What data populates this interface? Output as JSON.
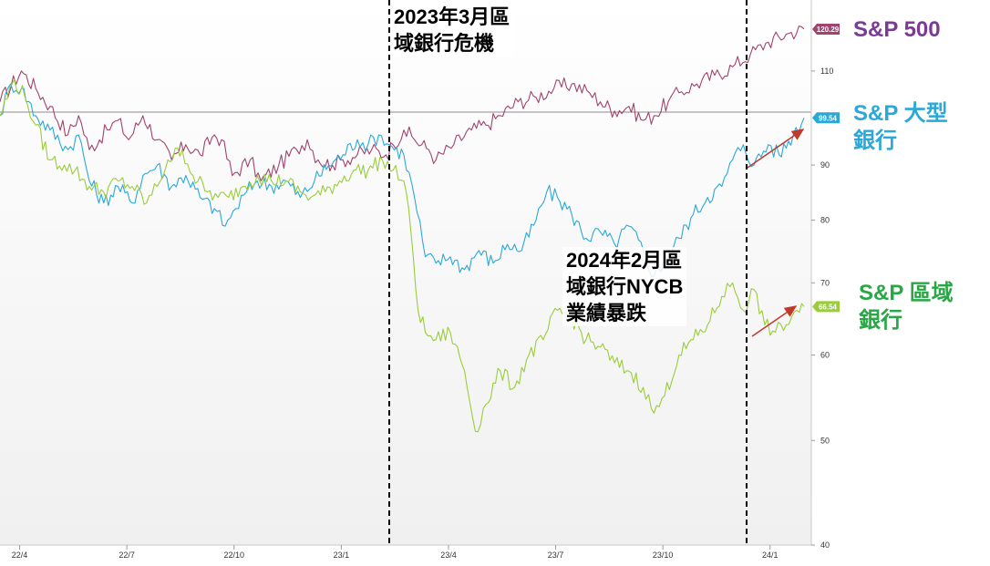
{
  "chart_data": {
    "type": "line",
    "y_scale": "log",
    "ylim": [
      40,
      128
    ],
    "y_ticks": [
      "40",
      "50",
      "60",
      "70",
      "80",
      "90",
      "110"
    ],
    "x_ticks": [
      "22/4",
      "22/7",
      "22/10",
      "23/1",
      "23/4",
      "23/7",
      "23/10",
      "24/1"
    ],
    "grid": false,
    "reference_line": 100,
    "series": [
      {
        "name": "S&P 500",
        "color": "#a0436e",
        "last_value": "120.29",
        "values": [
          [
            0,
            103
          ],
          [
            0.6,
            110
          ],
          [
            1,
            106
          ],
          [
            1.4,
            102
          ],
          [
            1.9,
            96
          ],
          [
            2.2,
            100
          ],
          [
            2.5,
            93
          ],
          [
            3.0,
            97
          ],
          [
            3.3,
            99
          ],
          [
            3.6,
            95
          ],
          [
            4.0,
            100
          ],
          [
            4.4,
            95
          ],
          [
            4.8,
            91
          ],
          [
            5.2,
            94
          ],
          [
            5.6,
            92
          ],
          [
            6.0,
            96
          ],
          [
            6.2,
            95
          ],
          [
            6.5,
            88
          ],
          [
            7.0,
            91
          ],
          [
            7.3,
            87
          ],
          [
            7.8,
            90
          ],
          [
            8.3,
            93
          ],
          [
            8.6,
            95
          ],
          [
            8.9,
            91
          ],
          [
            9.3,
            90
          ],
          [
            9.6,
            91
          ],
          [
            10.0,
            92
          ],
          [
            10.4,
            93
          ],
          [
            10.8,
            92
          ],
          [
            11.0,
            94
          ],
          [
            11.3,
            97
          ],
          [
            11.6,
            95
          ],
          [
            12.0,
            93
          ],
          [
            12.2,
            91
          ],
          [
            12.7,
            94
          ],
          [
            13.2,
            97
          ],
          [
            13.6,
            98
          ],
          [
            14.0,
            100
          ],
          [
            14.5,
            103
          ],
          [
            15.0,
            104
          ],
          [
            15.5,
            106
          ],
          [
            16.0,
            107
          ],
          [
            16.5,
            105
          ],
          [
            16.8,
            103
          ],
          [
            17.2,
            101
          ],
          [
            17.6,
            102
          ],
          [
            18.0,
            99
          ],
          [
            18.3,
            100
          ],
          [
            18.7,
            103
          ],
          [
            19.0,
            105
          ],
          [
            19.5,
            107
          ],
          [
            20.0,
            109
          ],
          [
            20.5,
            111
          ],
          [
            21.0,
            114
          ],
          [
            21.5,
            117
          ],
          [
            22.0,
            119
          ],
          [
            22.5,
            120.29
          ]
        ]
      },
      {
        "name": "S&P 大型\n銀行",
        "color": "#2aa8d8",
        "last_value": "99.54",
        "values": [
          [
            0,
            100
          ],
          [
            0.3,
            107
          ],
          [
            0.6,
            106
          ],
          [
            1,
            100
          ],
          [
            1.4,
            97
          ],
          [
            1.9,
            93
          ],
          [
            2.2,
            96
          ],
          [
            2.5,
            87
          ],
          [
            2.9,
            83
          ],
          [
            3.3,
            86
          ],
          [
            3.7,
            83
          ],
          [
            4.0,
            88
          ],
          [
            4.4,
            90
          ],
          [
            4.8,
            86
          ],
          [
            5.2,
            88
          ],
          [
            5.6,
            84
          ],
          [
            6.0,
            82
          ],
          [
            6.3,
            79
          ],
          [
            6.6,
            82
          ],
          [
            6.9,
            85
          ],
          [
            7.2,
            87
          ],
          [
            7.6,
            86
          ],
          [
            8.0,
            87
          ],
          [
            8.4,
            84
          ],
          [
            8.8,
            87
          ],
          [
            9.2,
            90
          ],
          [
            9.6,
            92
          ],
          [
            10.0,
            95
          ],
          [
            10.3,
            94
          ],
          [
            10.6,
            96
          ],
          [
            10.9,
            94
          ],
          [
            11.3,
            92
          ],
          [
            11.6,
            84
          ],
          [
            11.9,
            74
          ],
          [
            12.2,
            73
          ],
          [
            12.6,
            74
          ],
          [
            13.0,
            72
          ],
          [
            13.4,
            75
          ],
          [
            13.8,
            73
          ],
          [
            14.2,
            76
          ],
          [
            14.6,
            75
          ],
          [
            15.0,
            80
          ],
          [
            15.3,
            85
          ],
          [
            15.6,
            84
          ],
          [
            16.0,
            81
          ],
          [
            16.4,
            77
          ],
          [
            16.8,
            78
          ],
          [
            17.2,
            76
          ],
          [
            17.6,
            79
          ],
          [
            18.0,
            75
          ],
          [
            18.3,
            71
          ],
          [
            18.7,
            74
          ],
          [
            19.0,
            77
          ],
          [
            19.4,
            81
          ],
          [
            19.8,
            84
          ],
          [
            20.2,
            86
          ],
          [
            20.5,
            91
          ],
          [
            20.8,
            94
          ],
          [
            21.1,
            90
          ],
          [
            21.5,
            94
          ],
          [
            21.8,
            92
          ],
          [
            22.2,
            96
          ],
          [
            22.5,
            99.54
          ]
        ]
      },
      {
        "name": "S&P 區域\n銀行",
        "color": "#9acd3a",
        "last_value": "66.54",
        "values": [
          [
            0,
            100
          ],
          [
            0.4,
            108
          ],
          [
            0.7,
            104
          ],
          [
            1,
            98
          ],
          [
            1.4,
            91
          ],
          [
            1.8,
            90
          ],
          [
            2.1,
            89
          ],
          [
            2.5,
            86
          ],
          [
            2.9,
            85
          ],
          [
            3.3,
            87
          ],
          [
            3.7,
            86
          ],
          [
            4.1,
            83
          ],
          [
            4.4,
            86
          ],
          [
            4.7,
            91
          ],
          [
            5.1,
            93
          ],
          [
            5.4,
            88
          ],
          [
            5.8,
            85
          ],
          [
            6.1,
            84
          ],
          [
            6.4,
            84
          ],
          [
            6.8,
            86
          ],
          [
            7.2,
            88
          ],
          [
            7.6,
            87
          ],
          [
            8.0,
            87
          ],
          [
            8.4,
            85
          ],
          [
            8.7,
            84
          ],
          [
            9.1,
            85
          ],
          [
            9.5,
            87
          ],
          [
            9.9,
            89
          ],
          [
            10.3,
            89
          ],
          [
            10.7,
            91
          ],
          [
            11.0,
            89
          ],
          [
            11.3,
            87
          ],
          [
            11.5,
            78
          ],
          [
            11.7,
            66
          ],
          [
            11.9,
            63
          ],
          [
            12.2,
            62
          ],
          [
            12.6,
            63
          ],
          [
            13.0,
            58
          ],
          [
            13.3,
            51
          ],
          [
            13.6,
            54
          ],
          [
            14.0,
            58
          ],
          [
            14.4,
            56
          ],
          [
            14.8,
            60
          ],
          [
            15.2,
            62
          ],
          [
            15.6,
            66
          ],
          [
            16.0,
            65
          ],
          [
            16.4,
            62
          ],
          [
            16.8,
            61
          ],
          [
            17.2,
            59
          ],
          [
            17.6,
            58
          ],
          [
            18.0,
            56
          ],
          [
            18.3,
            53
          ],
          [
            18.6,
            55
          ],
          [
            19.0,
            60
          ],
          [
            19.4,
            62
          ],
          [
            19.8,
            64
          ],
          [
            20.2,
            68
          ],
          [
            20.5,
            70
          ],
          [
            20.8,
            66
          ],
          [
            21.1,
            69
          ],
          [
            21.4,
            64
          ],
          [
            21.7,
            63
          ],
          [
            22.0,
            64
          ],
          [
            22.3,
            66
          ],
          [
            22.5,
            66.54
          ]
        ]
      }
    ],
    "annotations": [
      "2023年3月區\n域銀行危機",
      "2024年2月區\n域銀行NYCB\n業績暴跌"
    ]
  },
  "legend": {
    "sp500": "S&P 500",
    "big_banks": "S&P 大型\n銀行",
    "regional_banks": "S&P 區域\n銀行"
  },
  "badges": {
    "sp500": "120.29",
    "big_banks": "99.54",
    "regional_banks": "66.54"
  },
  "colors": {
    "sp500_label": "#7b3a96",
    "big_banks_label": "#2aa8d8",
    "regional_banks_label": "#27a844",
    "arrow": "#c0392b"
  }
}
